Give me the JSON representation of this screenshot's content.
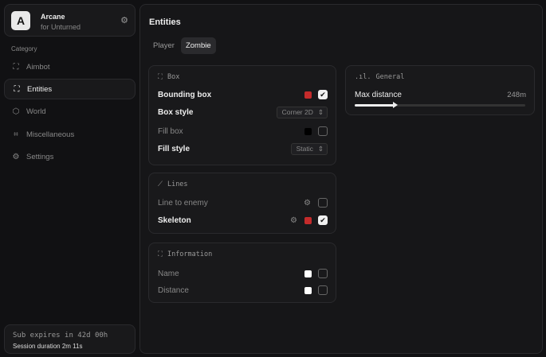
{
  "app": {
    "logo_letter": "A",
    "title": "Arcane",
    "subtitle": "for Unturned"
  },
  "sidebar": {
    "category_label": "Category",
    "items": [
      {
        "label": "Aimbot",
        "icon": "crosshair-icon",
        "active": false
      },
      {
        "label": "Entities",
        "icon": "scan-user-icon",
        "active": true
      },
      {
        "label": "World",
        "icon": "cube-icon",
        "active": false
      },
      {
        "label": "Miscellaneous",
        "icon": "grid-icon",
        "active": false
      },
      {
        "label": "Settings",
        "icon": "gear-icon",
        "active": false
      }
    ]
  },
  "subscription": {
    "expires": "Sub expires in 42d 00h",
    "session": "Session duration 2m 11s"
  },
  "main": {
    "title": "Entities",
    "tabs": [
      {
        "label": "Player",
        "active": false
      },
      {
        "label": "Zombie",
        "active": true
      }
    ]
  },
  "box": {
    "title": "Box",
    "bounding_box": {
      "label": "Bounding box",
      "color": "#c42b2b",
      "checked": true
    },
    "box_style": {
      "label": "Box style",
      "value": "Corner 2D"
    },
    "fill_box": {
      "label": "Fill box",
      "color": "#000000",
      "checked": false
    },
    "fill_style": {
      "label": "Fill style",
      "value": "Static"
    }
  },
  "lines": {
    "title": "Lines",
    "line_to_enemy": {
      "label": "Line to enemy",
      "checked": false
    },
    "skeleton": {
      "label": "Skeleton",
      "color": "#c42b2b",
      "checked": true
    }
  },
  "information": {
    "title": "Information",
    "name": {
      "label": "Name",
      "color": "#ffffff",
      "checked": false
    },
    "distance": {
      "label": "Distance",
      "color": "#ffffff",
      "checked": false
    }
  },
  "general": {
    "title": "General",
    "max_distance": {
      "label": "Max distance",
      "value": "248m",
      "fraction": 0.24
    }
  }
}
